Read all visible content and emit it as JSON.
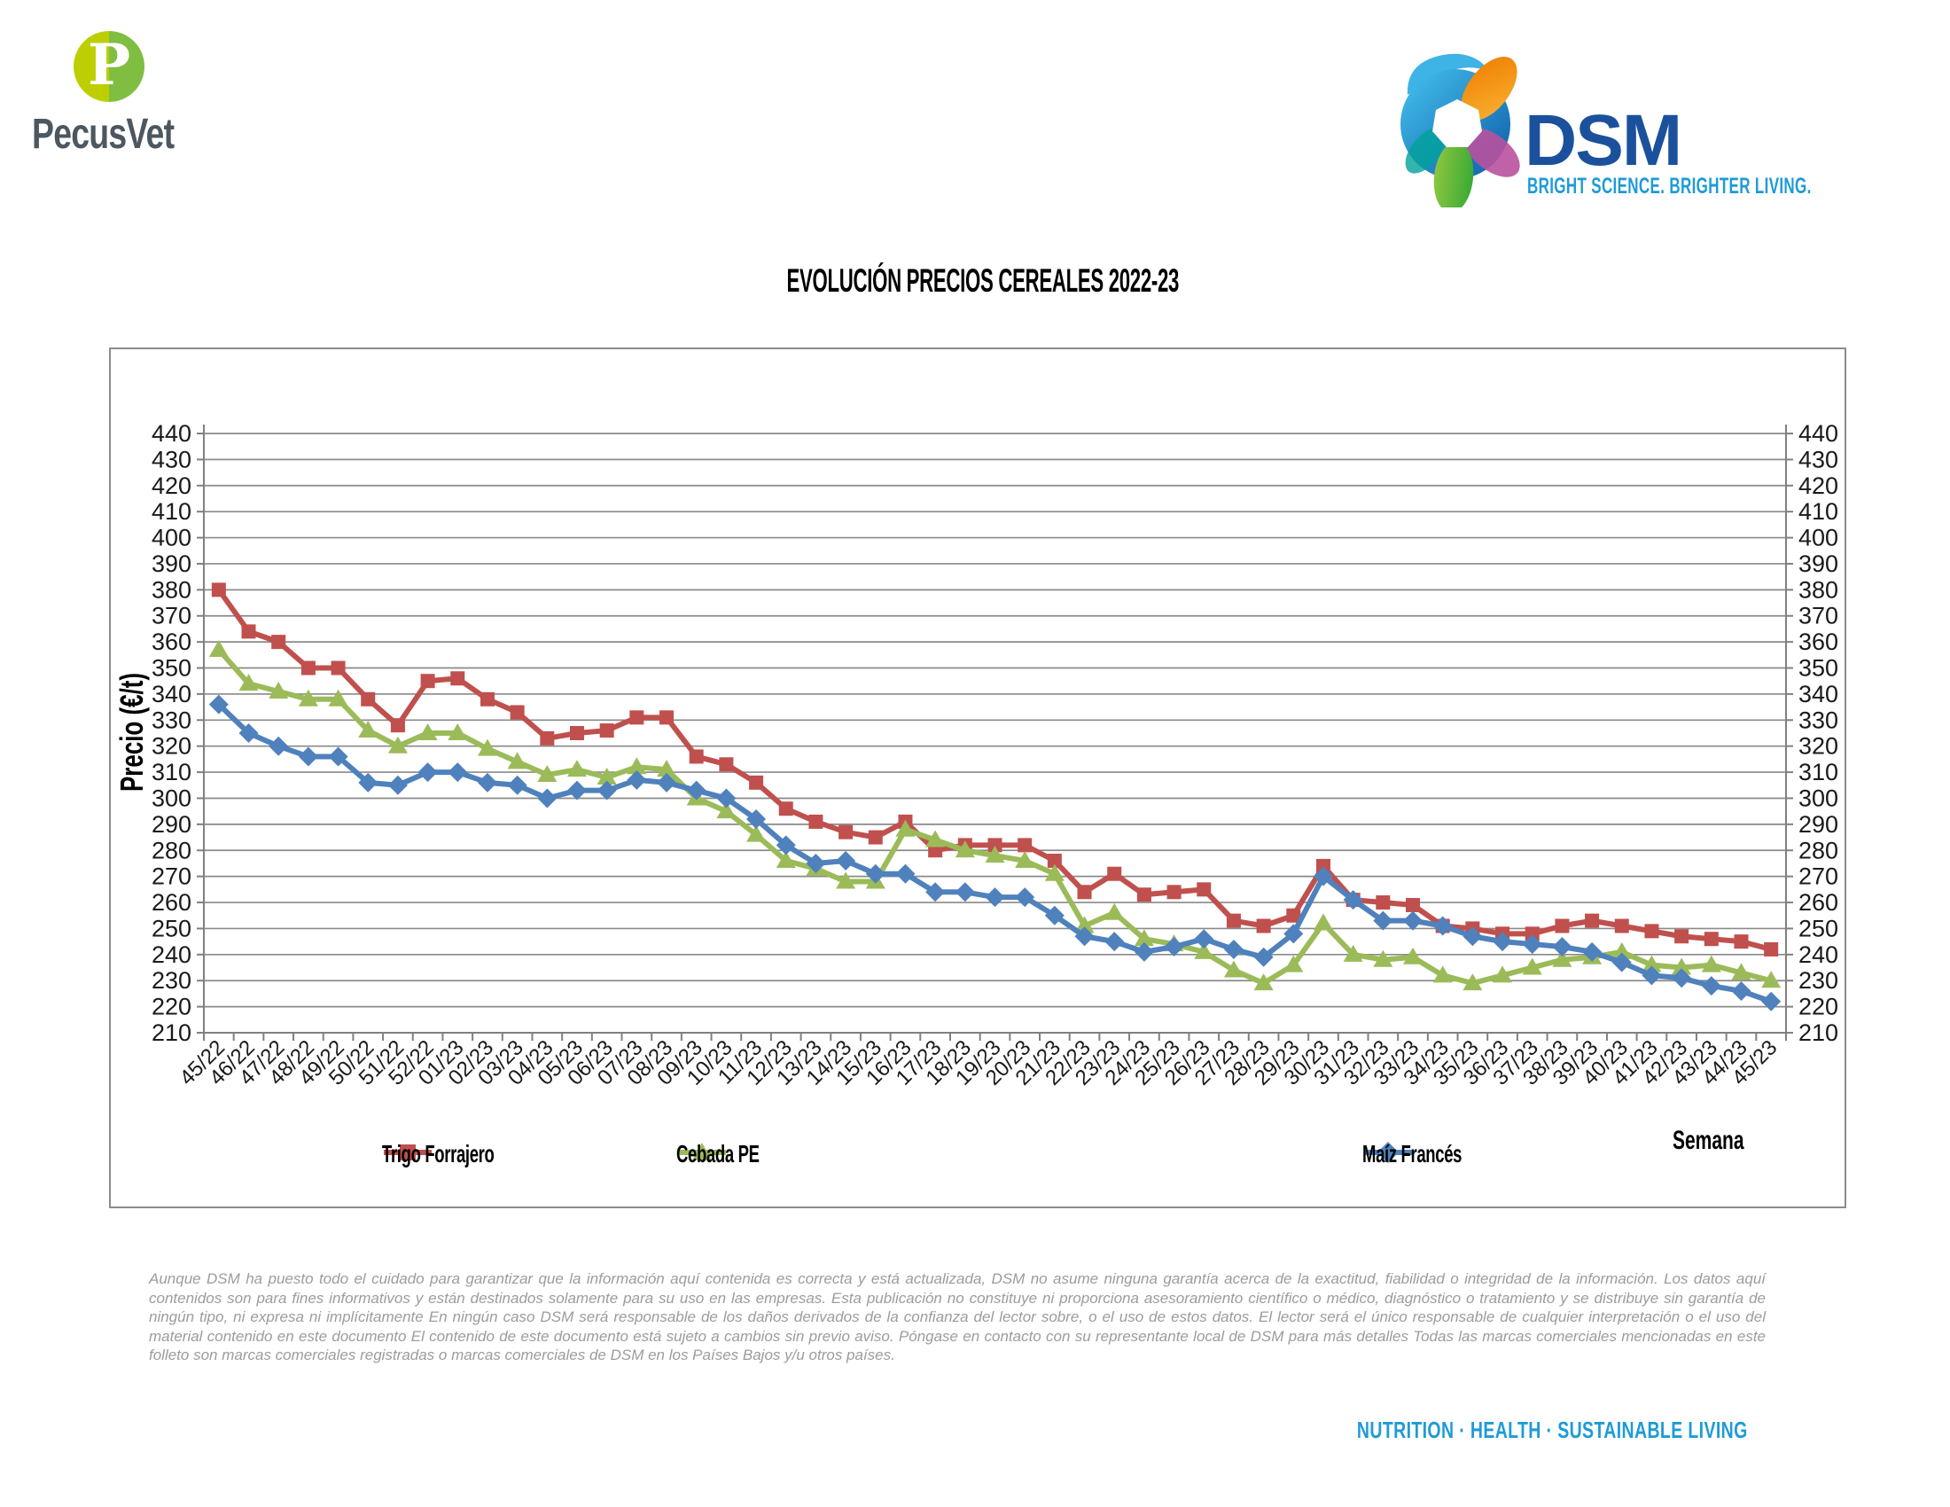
{
  "header": {
    "pecusvet": {
      "monogram": "P",
      "wordmark": "PecusVet"
    },
    "dsm": {
      "wordmark": "DSM",
      "tagline": "BRIGHT SCIENCE. BRIGHTER LIVING."
    }
  },
  "chart_data": {
    "type": "line",
    "title": "EVOLUCIÓN PRECIOS CEREALES 2022-23",
    "xlabel": "Semana",
    "ylabel": "Precio (€/t)",
    "ylim": [
      210,
      440
    ],
    "ytick_step": 10,
    "grid": true,
    "dual_y_axis": true,
    "legend_position": "bottom",
    "categories": [
      "45/22",
      "46/22",
      "47/22",
      "48/22",
      "49/22",
      "50/22",
      "51/22",
      "52/22",
      "01/23",
      "02/23",
      "03/23",
      "04/23",
      "05/23",
      "06/23",
      "07/23",
      "08/23",
      "09/23",
      "10/23",
      "11/23",
      "12/23",
      "13/23",
      "14/23",
      "15/23",
      "16/23",
      "17/23",
      "18/23",
      "19/23",
      "20/23",
      "21/23",
      "22/23",
      "23/23",
      "24/23",
      "25/23",
      "26/23",
      "27/23",
      "28/23",
      "29/23",
      "30/23",
      "31/23",
      "32/23",
      "33/23",
      "34/23",
      "35/23",
      "36/23",
      "37/23",
      "38/23",
      "39/23",
      "40/23",
      "41/23",
      "42/23",
      "43/23",
      "44/23",
      "45/23"
    ],
    "series": [
      {
        "name": "Trigo Forrajero",
        "color": "#C0504D",
        "marker": "square",
        "values": [
          380,
          364,
          360,
          350,
          350,
          338,
          328,
          345,
          346,
          338,
          333,
          323,
          325,
          326,
          331,
          331,
          316,
          313,
          306,
          296,
          291,
          287,
          285,
          291,
          280,
          282,
          282,
          282,
          276,
          264,
          271,
          263,
          264,
          265,
          253,
          251,
          255,
          274,
          261,
          260,
          259,
          251,
          250,
          248,
          248,
          251,
          253,
          251,
          249,
          247,
          246,
          245,
          242
        ]
      },
      {
        "name": "Cebada PE",
        "color": "#9BBB59",
        "marker": "triangle",
        "values": [
          357,
          344,
          341,
          338,
          338,
          326,
          320,
          325,
          325,
          319,
          314,
          309,
          311,
          308,
          312,
          311,
          300,
          295,
          286,
          276,
          273,
          268,
          268,
          288,
          284,
          280,
          278,
          276,
          271,
          251,
          256,
          246,
          244,
          241,
          234,
          229,
          236,
          252,
          240,
          238,
          239,
          232,
          229,
          232,
          235,
          238,
          239,
          241,
          236,
          235,
          236,
          233,
          230
        ]
      },
      {
        "name": "Maíz Francés",
        "color": "#4F81BD",
        "marker": "diamond",
        "values": [
          336,
          325,
          320,
          316,
          316,
          306,
          305,
          310,
          310,
          306,
          305,
          300,
          303,
          303,
          307,
          306,
          303,
          300,
          292,
          282,
          275,
          276,
          271,
          271,
          264,
          264,
          262,
          262,
          255,
          247,
          245,
          241,
          243,
          246,
          242,
          239,
          248,
          270,
          261,
          253,
          253,
          251,
          247,
          245,
          244,
          243,
          241,
          237,
          232,
          231,
          228,
          226,
          222
        ]
      }
    ],
    "style": {
      "gridline_color": "#8a8a8a",
      "axis_color": "#808080",
      "tick_label_color": "#1a1a1a",
      "plot_border_color": "#8c8c8c"
    }
  },
  "footer": {
    "disclaimer": "Aunque DSM ha puesto todo el cuidado para garantizar que la información aquí contenida es correcta y está actualizada, DSM no asume ninguna garantía acerca de la exactitud, fiabilidad o integridad de la información. Los datos aquí contenidos son para fines informativos y están destinados solamente para su uso en las empresas. Esta publicación no constituye ni proporciona asesoramiento científico o médico, diagnóstico o tratamiento y se distribuye sin garantía de ningún tipo, ni expresa ni implícitamente En ningún caso DSM será responsable de los daños derivados de la confianza del lector sobre, o el uso de estos datos. El lector será el único responsable de cualquier interpretación o el uso del material contenido en este documento El contenido de este documento está sujeto a cambios sin previo aviso. Póngase en contacto con su representante local de DSM para más detalles Todas las marcas comerciales mencionadas en este folleto son marcas comerciales registradas o marcas comerciales de DSM en los Países Bajos y/u otros países.",
    "tagline": "NUTRITION  ·  HEALTH  ·  SUSTAINABLE LIVING"
  },
  "brand_colors": {
    "pecusvet_green_left": "#bdcf00",
    "pecusvet_green_right": "#7fbe41",
    "pecusvet_gray": "#4c5760",
    "dsm_dark_blue": "#1b519c",
    "dsm_light_blue": "#1e9bd7"
  }
}
